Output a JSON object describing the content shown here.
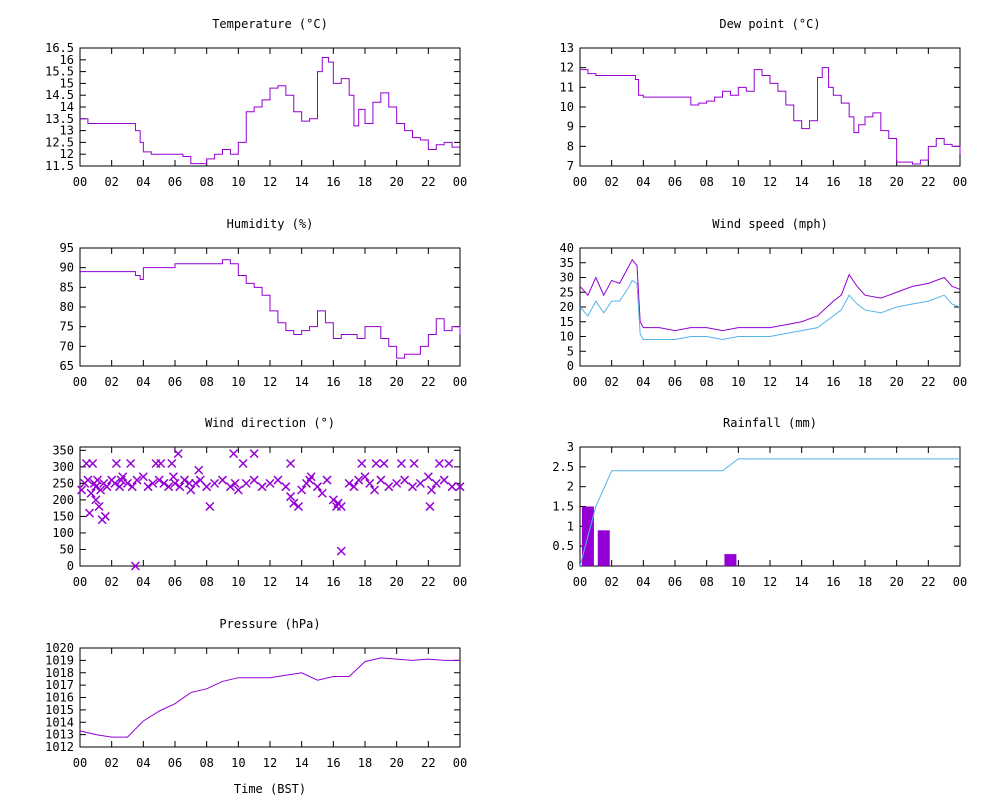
{
  "colors": {
    "primary": "#9400D3",
    "secondary": "#56B4E9",
    "axis": "#000000",
    "background": "#FFFFFF"
  },
  "xlabel": "Time (BST)",
  "chart_data": [
    {
      "id": "temperature",
      "type": "line",
      "title": "Temperature (°C)",
      "ytick_labels": [
        "11.5",
        "12",
        "12.5",
        "13",
        "13.5",
        "14",
        "14.5",
        "15",
        "15.5",
        "16",
        "16.5"
      ],
      "ylim": [
        11.5,
        16.5
      ],
      "xlim": [
        0,
        24
      ],
      "x_tick_labels": [
        "00",
        "02",
        "04",
        "06",
        "08",
        "10",
        "12",
        "14",
        "16",
        "18",
        "20",
        "22",
        "00"
      ],
      "series": [
        {
          "color": "#9400D3",
          "style": "step",
          "x": [
            0,
            0.5,
            1,
            2,
            3,
            3.5,
            3.8,
            4,
            4.5,
            5,
            6,
            6.5,
            7,
            7.5,
            8,
            8.5,
            9,
            9.5,
            10,
            10.5,
            11,
            11.5,
            12,
            12.5,
            13,
            13.5,
            14,
            14.5,
            15,
            15.3,
            15.7,
            16,
            16.5,
            17,
            17.3,
            17.6,
            18,
            18.5,
            19,
            19.5,
            20,
            20.5,
            21,
            21.5,
            22,
            22.5,
            23,
            23.5,
            24
          ],
          "y": [
            13.5,
            13.3,
            13.3,
            13.3,
            13.3,
            13.0,
            12.5,
            12.1,
            12.0,
            12.0,
            12.0,
            11.9,
            11.6,
            11.6,
            11.8,
            12.0,
            12.2,
            12.0,
            12.5,
            13.8,
            14.0,
            14.3,
            14.8,
            14.9,
            14.5,
            13.8,
            13.4,
            13.5,
            15.5,
            16.1,
            15.9,
            15.0,
            15.2,
            14.5,
            13.2,
            13.9,
            13.3,
            14.2,
            14.6,
            14.0,
            13.3,
            13.0,
            12.7,
            12.6,
            12.2,
            12.4,
            12.5,
            12.3,
            12.3
          ]
        }
      ]
    },
    {
      "id": "dew-point",
      "type": "line",
      "title": "Dew point (°C)",
      "ytick_labels": [
        "7",
        "8",
        "9",
        "10",
        "11",
        "12",
        "13"
      ],
      "ylim": [
        7,
        13
      ],
      "xlim": [
        0,
        24
      ],
      "x_tick_labels": [
        "00",
        "02",
        "04",
        "06",
        "08",
        "10",
        "12",
        "14",
        "16",
        "18",
        "20",
        "22",
        "00"
      ],
      "series": [
        {
          "color": "#9400D3",
          "style": "step",
          "x": [
            0,
            0.5,
            1,
            2,
            3,
            3.5,
            3.7,
            4,
            5,
            6,
            7,
            7.5,
            8,
            8.5,
            9,
            9.5,
            10,
            10.5,
            11,
            11.5,
            12,
            12.5,
            13,
            13.5,
            14,
            14.5,
            15,
            15.3,
            15.7,
            16,
            16.5,
            17,
            17.3,
            17.6,
            18,
            18.5,
            19,
            19.5,
            20,
            20.5,
            21,
            21.5,
            22,
            22.5,
            23,
            23.5,
            24
          ],
          "y": [
            11.9,
            11.7,
            11.6,
            11.6,
            11.6,
            11.4,
            10.6,
            10.5,
            10.5,
            10.5,
            10.1,
            10.2,
            10.3,
            10.5,
            10.8,
            10.6,
            11.0,
            10.8,
            11.9,
            11.6,
            11.2,
            10.8,
            10.1,
            9.3,
            8.9,
            9.3,
            11.5,
            12.0,
            11.0,
            10.6,
            10.2,
            9.5,
            8.7,
            9.1,
            9.5,
            9.7,
            8.8,
            8.4,
            7.2,
            7.2,
            7.1,
            7.3,
            8.0,
            8.4,
            8.1,
            8.0,
            7.6
          ]
        }
      ]
    },
    {
      "id": "humidity",
      "type": "line",
      "title": "Humidity (%)",
      "ytick_labels": [
        "65",
        "70",
        "75",
        "80",
        "85",
        "90",
        "95"
      ],
      "ylim": [
        65,
        95
      ],
      "xlim": [
        0,
        24
      ],
      "x_tick_labels": [
        "00",
        "02",
        "04",
        "06",
        "08",
        "10",
        "12",
        "14",
        "16",
        "18",
        "20",
        "22",
        "00"
      ],
      "series": [
        {
          "color": "#9400D3",
          "style": "step",
          "x": [
            0,
            1,
            2,
            3,
            3.5,
            3.8,
            4,
            5,
            6,
            7,
            8,
            8.5,
            9,
            9.5,
            10,
            10.5,
            11,
            11.5,
            12,
            12.5,
            13,
            13.5,
            14,
            14.5,
            15,
            15.5,
            16,
            16.5,
            17,
            17.5,
            18,
            18.5,
            19,
            19.5,
            20,
            20.5,
            21,
            21.5,
            22,
            22.5,
            23,
            23.5,
            24
          ],
          "y": [
            89,
            89,
            89,
            89,
            88,
            87,
            90,
            90,
            91,
            91,
            91,
            91,
            92,
            91,
            88,
            86,
            85,
            83,
            79,
            76,
            74,
            73,
            74,
            75,
            79,
            76,
            72,
            73,
            73,
            72,
            75,
            75,
            72,
            70,
            67,
            68,
            68,
            70,
            73,
            77,
            74,
            75,
            73
          ]
        }
      ]
    },
    {
      "id": "wind-speed",
      "type": "line",
      "title": "Wind speed (mph)",
      "ytick_labels": [
        "0",
        "5",
        "10",
        "15",
        "20",
        "25",
        "30",
        "35",
        "40"
      ],
      "ylim": [
        0,
        40
      ],
      "xlim": [
        0,
        24
      ],
      "x_tick_labels": [
        "00",
        "02",
        "04",
        "06",
        "08",
        "10",
        "12",
        "14",
        "16",
        "18",
        "20",
        "22",
        "00"
      ],
      "series": [
        {
          "color": "#9400D3",
          "style": "line",
          "x": [
            0,
            0.5,
            1,
            1.5,
            2,
            2.5,
            3,
            3.3,
            3.6,
            3.8,
            4,
            5,
            6,
            7,
            8,
            9,
            10,
            11,
            12,
            13,
            14,
            15,
            16,
            16.5,
            17,
            17.5,
            18,
            19,
            20,
            21,
            22,
            23,
            23.5,
            24
          ],
          "y": [
            27,
            24,
            30,
            24,
            29,
            28,
            33,
            36,
            34,
            15,
            13,
            13,
            12,
            13,
            13,
            12,
            13,
            13,
            13,
            14,
            15,
            17,
            22,
            24,
            31,
            27,
            24,
            23,
            25,
            27,
            28,
            30,
            27,
            26
          ]
        },
        {
          "color": "#56B4E9",
          "style": "line",
          "x": [
            0,
            0.5,
            1,
            1.5,
            2,
            2.5,
            3,
            3.3,
            3.6,
            3.8,
            4,
            5,
            6,
            7,
            8,
            9,
            10,
            11,
            12,
            13,
            14,
            15,
            16,
            16.5,
            17,
            17.5,
            18,
            19,
            20,
            21,
            22,
            23,
            23.5,
            24
          ],
          "y": [
            20,
            17,
            22,
            18,
            22,
            22,
            26,
            29,
            28,
            11,
            9,
            9,
            9,
            10,
            10,
            9,
            10,
            10,
            10,
            11,
            12,
            13,
            17,
            19,
            24,
            21,
            19,
            18,
            20,
            21,
            22,
            24,
            21,
            20
          ]
        }
      ]
    },
    {
      "id": "wind-direction",
      "type": "scatter",
      "title": "Wind direction (°)",
      "ytick_labels": [
        "0",
        "50",
        "100",
        "150",
        "200",
        "250",
        "300",
        "350"
      ],
      "ylim": [
        0,
        360
      ],
      "xlim": [
        0,
        24
      ],
      "x_tick_labels": [
        "00",
        "02",
        "04",
        "06",
        "08",
        "10",
        "12",
        "14",
        "16",
        "18",
        "20",
        "22",
        "00"
      ],
      "series": [
        {
          "color": "#9400D3",
          "marker": "x",
          "x": [
            0.1,
            0.3,
            0.5,
            0.7,
            0.9,
            1.0,
            1.1,
            1.3,
            1.5,
            1.7,
            2.0,
            2.2,
            2.5,
            2.7,
            3.0,
            3.3,
            3.6,
            4.0,
            4.3,
            4.6,
            5.0,
            5.3,
            5.6,
            5.9,
            6.0,
            6.3,
            6.6,
            6.9,
            7.0,
            7.3,
            7.6,
            8.0,
            8.5,
            9.0,
            9.5,
            9.8,
            10.0,
            10.5,
            11.0,
            11.5,
            12.0,
            12.5,
            13.0,
            13.3,
            13.5,
            13.8,
            14.0,
            14.3,
            14.6,
            15.0,
            15.3,
            15.6,
            16.0,
            16.3,
            16.5,
            17.0,
            17.3,
            17.6,
            18.0,
            18.3,
            18.6,
            19.0,
            19.5,
            20.0,
            20.5,
            21.0,
            21.5,
            22.0,
            22.2,
            22.5,
            23.0,
            23.5,
            24.0,
            0.4,
            0.8,
            1.0,
            1.2,
            1.6,
            2.3,
            3.2,
            4.8,
            5.1,
            5.8,
            6.2,
            7.5,
            8.2,
            9.7,
            10.3,
            11.0,
            13.3,
            14.5,
            16.2,
            16.5,
            17.8,
            18.7,
            19.2,
            20.3,
            21.1,
            22.1,
            22.7,
            23.3,
            0.6,
            1.4,
            2.6,
            3.5
          ],
          "y": [
            230,
            250,
            260,
            220,
            250,
            240,
            260,
            230,
            250,
            240,
            260,
            250,
            240,
            270,
            250,
            240,
            260,
            270,
            240,
            250,
            260,
            250,
            240,
            270,
            250,
            240,
            260,
            250,
            230,
            250,
            260,
            240,
            250,
            260,
            240,
            250,
            230,
            250,
            260,
            240,
            250,
            260,
            240,
            210,
            190,
            180,
            230,
            250,
            270,
            240,
            220,
            260,
            200,
            190,
            180,
            250,
            240,
            260,
            270,
            250,
            230,
            260,
            240,
            250,
            260,
            240,
            250,
            270,
            230,
            250,
            260,
            240,
            240,
            310,
            310,
            200,
            180,
            150,
            310,
            310,
            310,
            310,
            310,
            340,
            290,
            180,
            340,
            310,
            340,
            310,
            260,
            180,
            45,
            310,
            310,
            310,
            310,
            310,
            180,
            310,
            310,
            160,
            140,
            260,
            0
          ]
        }
      ]
    },
    {
      "id": "rainfall",
      "type": "bar",
      "title": "Rainfall (mm)",
      "ytick_labels": [
        "0",
        "0.5",
        "1",
        "1.5",
        "2",
        "2.5",
        "3"
      ],
      "ylim": [
        0,
        3
      ],
      "xlim": [
        0,
        24
      ],
      "x_tick_labels": [
        "00",
        "02",
        "04",
        "06",
        "08",
        "10",
        "12",
        "14",
        "16",
        "18",
        "20",
        "22",
        "00"
      ],
      "bars": {
        "color": "#9400D3",
        "x": [
          0.5,
          1.5,
          9.5
        ],
        "values": [
          1.5,
          0.9,
          0.3
        ]
      },
      "series": [
        {
          "color": "#56B4E9",
          "style": "line",
          "x": [
            0,
            1,
            2,
            9,
            10,
            24
          ],
          "y": [
            0,
            1.5,
            2.4,
            2.4,
            2.7,
            2.7
          ]
        }
      ]
    },
    {
      "id": "pressure",
      "type": "line",
      "title": "Pressure (hPa)",
      "ytick_labels": [
        "1012",
        "1013",
        "1014",
        "1015",
        "1016",
        "1017",
        "1018",
        "1019",
        "1020"
      ],
      "ylim": [
        1012,
        1020
      ],
      "xlim": [
        0,
        24
      ],
      "x_tick_labels": [
        "00",
        "02",
        "04",
        "06",
        "08",
        "10",
        "12",
        "14",
        "16",
        "18",
        "20",
        "22",
        "00"
      ],
      "series": [
        {
          "color": "#9400D3",
          "style": "line",
          "x": [
            0,
            1,
            2,
            3,
            4,
            5,
            6,
            7,
            8,
            9,
            10,
            11,
            12,
            13,
            14,
            15,
            16,
            17,
            18,
            19,
            20,
            21,
            22,
            23,
            24
          ],
          "y": [
            1013.3,
            1013.0,
            1012.8,
            1012.8,
            1014.1,
            1014.9,
            1015.5,
            1016.4,
            1016.7,
            1017.3,
            1017.6,
            1017.6,
            1017.6,
            1017.8,
            1018.0,
            1017.4,
            1017.7,
            1017.7,
            1018.9,
            1019.2,
            1019.1,
            1019.0,
            1019.1,
            1019.0,
            1019.0
          ]
        }
      ]
    }
  ]
}
